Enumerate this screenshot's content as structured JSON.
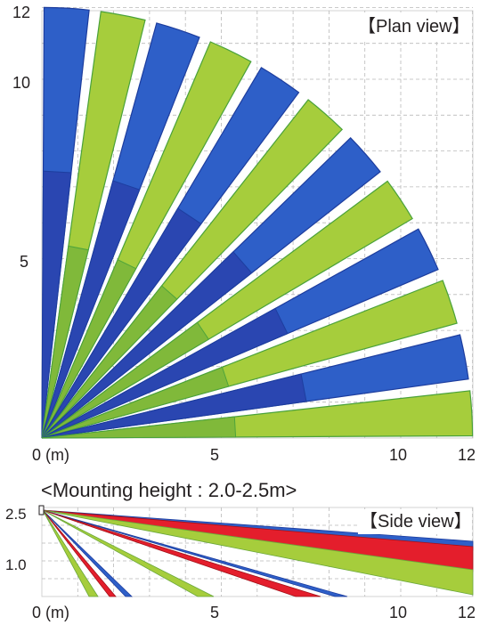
{
  "plan_view": {
    "label": "【Plan view】",
    "x_ticks": [
      "0 (m)",
      "5",
      "10",
      "12"
    ],
    "y_ticks": [
      "12",
      "10",
      "5"
    ],
    "range_m": 12,
    "zone_colors": [
      "#2e5fc8",
      "#a6cd3c"
    ]
  },
  "mounting_height": "<Mounting height : 2.0-2.5m>",
  "side_view": {
    "label": "【Side view】",
    "x_ticks": [
      "0 (m)",
      "5",
      "10",
      "12"
    ],
    "y_ticks": [
      "2.5",
      "1.0"
    ],
    "zone_colors": [
      "#2e5fc8",
      "#a6cd3c",
      "#e41e2c"
    ]
  }
}
